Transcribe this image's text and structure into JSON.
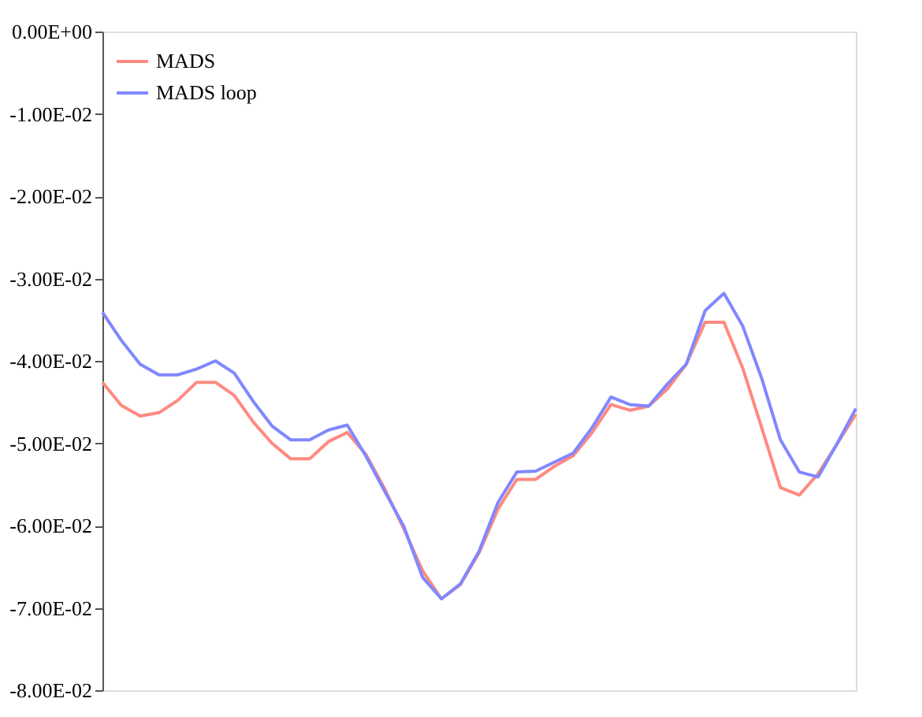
{
  "chart_data": {
    "type": "line",
    "categories": [
      null,
      null,
      null,
      null,
      null,
      null,
      null,
      null,
      null,
      null,
      null,
      null,
      null,
      null,
      null,
      null,
      null,
      null,
      null,
      null,
      null,
      null,
      null,
      null,
      null,
      null,
      null,
      null,
      null,
      null,
      null,
      null,
      null,
      null,
      null,
      null,
      null,
      null,
      null,
      null,
      null
    ],
    "ylim": [
      -0.08,
      0
    ],
    "yticks": [
      {
        "value": 0,
        "label": "0.00E+00"
      },
      {
        "value": -0.01,
        "label": "-1.00E-02"
      },
      {
        "value": -0.02,
        "label": "-2.00E-02"
      },
      {
        "value": -0.03,
        "label": "-3.00E-02"
      },
      {
        "value": -0.04,
        "label": "-4.00E-02"
      },
      {
        "value": -0.05,
        "label": "-5.00E-02"
      },
      {
        "value": -0.06,
        "label": "-6.00E-02"
      },
      {
        "value": -0.07,
        "label": "-7.00E-02"
      },
      {
        "value": -0.08,
        "label": "-8.00E-02"
      }
    ],
    "tick_labels": "y",
    "grid": false,
    "legend": "top left",
    "marker": "none",
    "line_style": "solid",
    "series": [
      {
        "name": "MADS",
        "color": "#ff8a80",
        "values": [
          -0.0426,
          -0.0454,
          -0.0467,
          -0.0463,
          -0.0448,
          -0.0426,
          -0.0426,
          -0.0442,
          -0.0474,
          -0.05,
          -0.0519,
          -0.0519,
          -0.0498,
          -0.0487,
          -0.0514,
          -0.0556,
          -0.0604,
          -0.0655,
          -0.0689,
          -0.0672,
          -0.0633,
          -0.058,
          -0.0544,
          -0.0544,
          -0.0528,
          -0.0515,
          -0.0487,
          -0.0453,
          -0.046,
          -0.0455,
          -0.0434,
          -0.0404,
          -0.0353,
          -0.0353,
          -0.0409,
          -0.0481,
          -0.0554,
          -0.0563,
          -0.0537,
          -0.0501,
          -0.0465
        ]
      },
      {
        "name": "MADS loop",
        "color": "#8088ff",
        "values": [
          -0.0341,
          -0.0375,
          -0.0404,
          -0.0417,
          -0.0417,
          -0.041,
          -0.04,
          -0.0415,
          -0.0449,
          -0.0479,
          -0.0496,
          -0.0496,
          -0.0484,
          -0.0478,
          -0.0516,
          -0.0559,
          -0.0601,
          -0.0663,
          -0.0689,
          -0.0671,
          -0.0631,
          -0.0572,
          -0.0535,
          -0.0534,
          -0.0523,
          -0.0512,
          -0.0481,
          -0.0444,
          -0.0453,
          -0.0455,
          -0.0428,
          -0.0404,
          -0.0339,
          -0.0318,
          -0.0358,
          -0.0421,
          -0.0496,
          -0.0535,
          -0.0541,
          -0.0501,
          -0.0458
        ]
      }
    ]
  }
}
